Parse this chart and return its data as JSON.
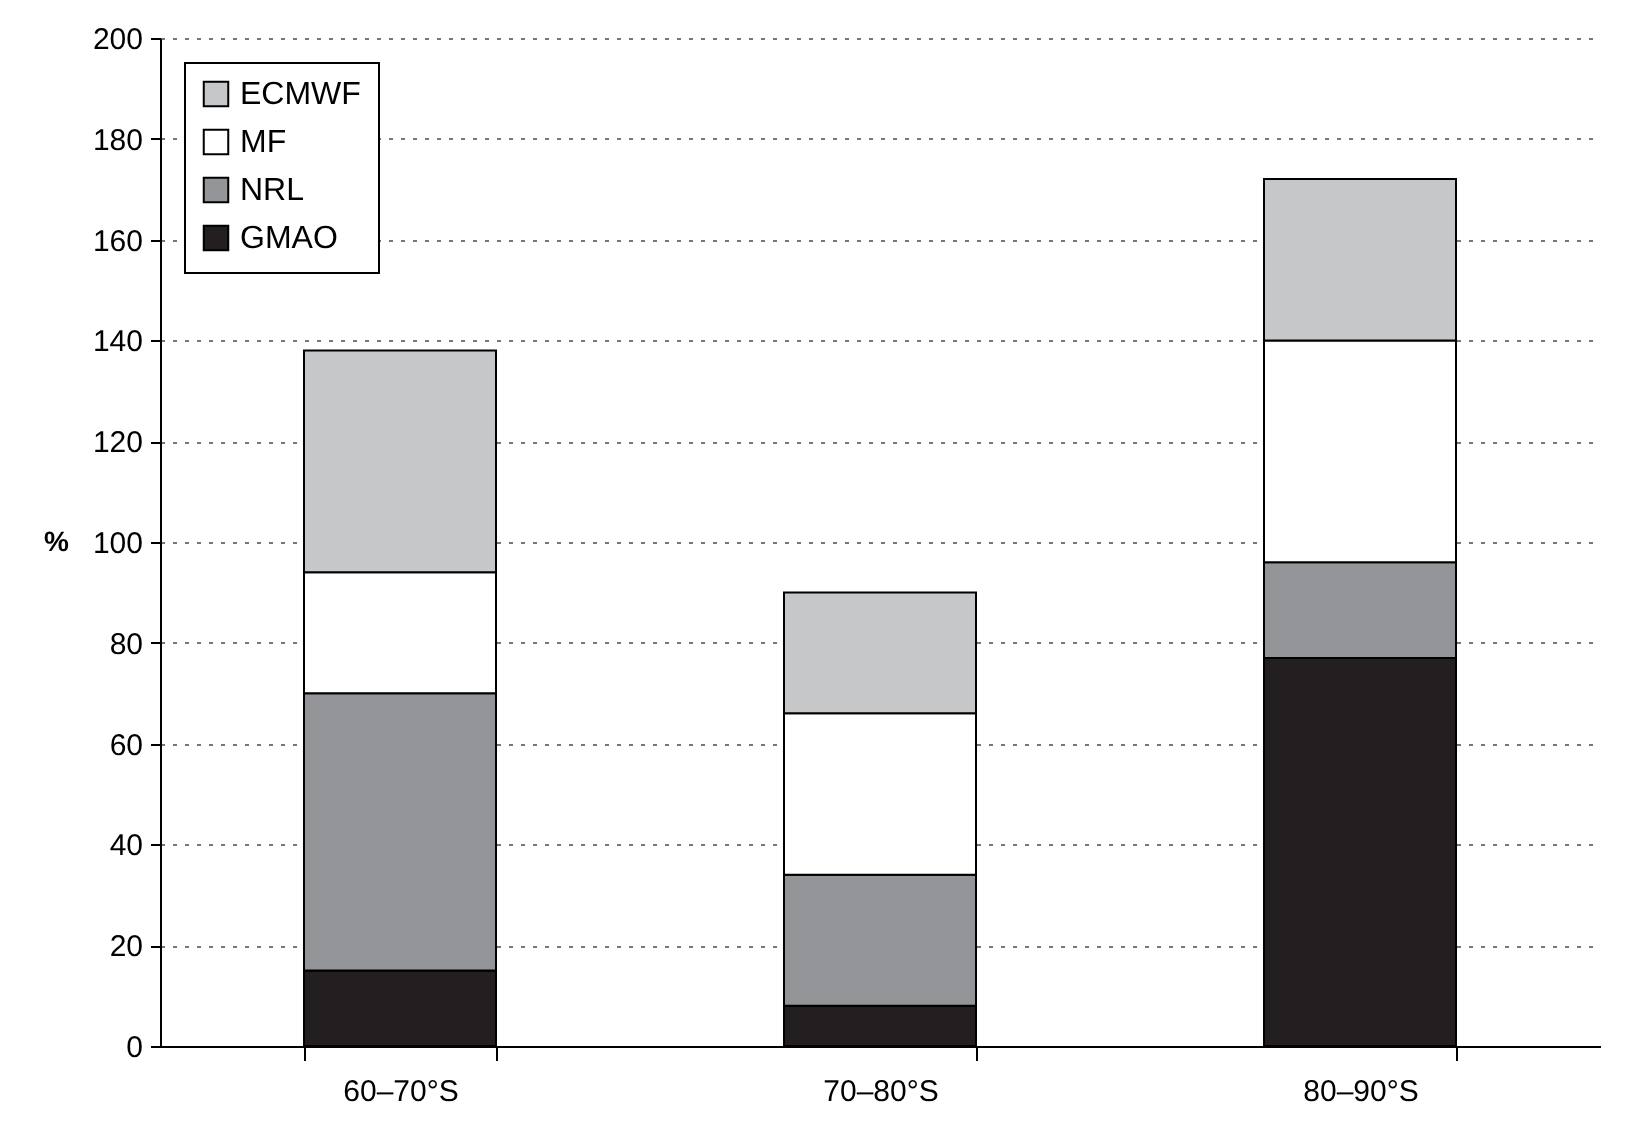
{
  "chart_data": {
    "type": "bar",
    "stacked": true,
    "ylabel": "%",
    "categories": [
      "60–70°S",
      "70–80°S",
      "80–90°S"
    ],
    "series": [
      {
        "name": "GMAO",
        "color": "#231f20",
        "values": [
          15,
          8,
          77
        ]
      },
      {
        "name": "NRL",
        "color": "#939598",
        "values": [
          55,
          26,
          19
        ]
      },
      {
        "name": "MF",
        "color": "#ffffff",
        "values": [
          24,
          32,
          44
        ]
      },
      {
        "name": "ECMWF",
        "color": "#c6c7c9",
        "values": [
          44,
          24,
          32
        ]
      }
    ],
    "ylim": [
      0,
      200
    ],
    "yticks": [
      0,
      20,
      40,
      60,
      80,
      100,
      120,
      140,
      160,
      180,
      200
    ],
    "grid": "y",
    "legend": "top left"
  }
}
